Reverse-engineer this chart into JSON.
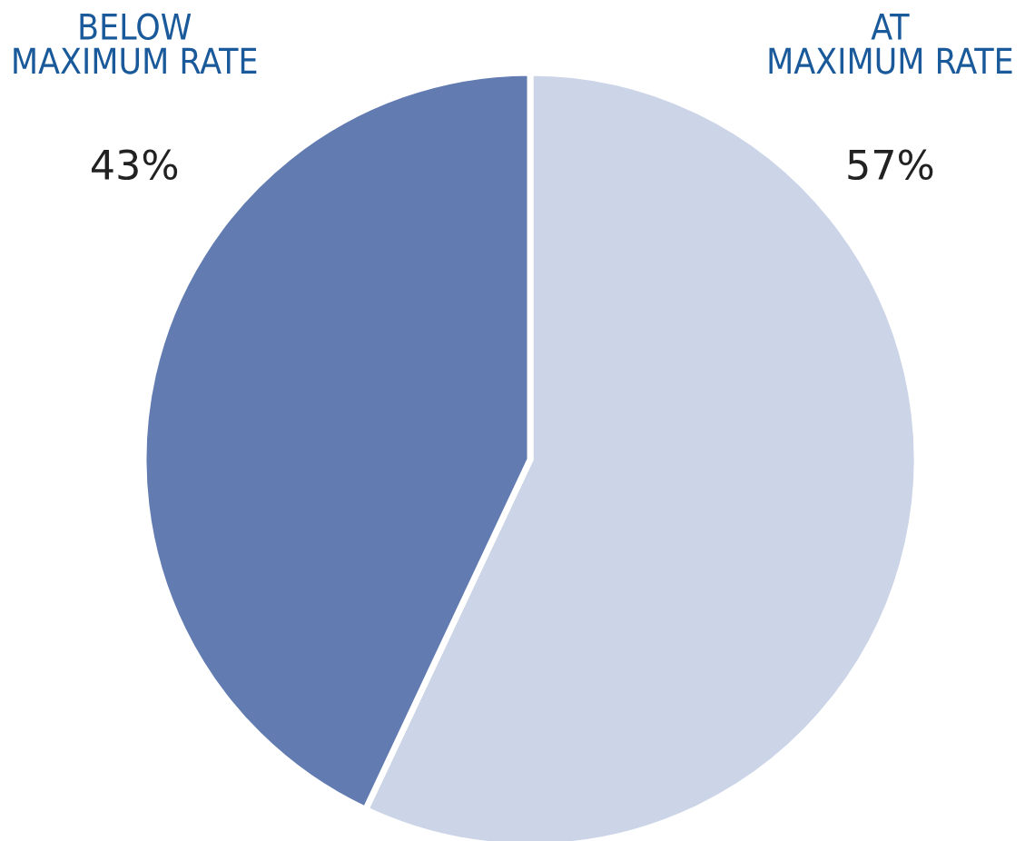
{
  "chart_data": {
    "type": "pie",
    "categories": [
      "AT\nMAXIMUM RATE",
      "BELOW\nMAXIMUM RATE"
    ],
    "values": [
      57,
      43
    ],
    "colors": [
      "#ccd5e8",
      "#627cb2"
    ],
    "value_labels": [
      "57%",
      "43%"
    ]
  }
}
